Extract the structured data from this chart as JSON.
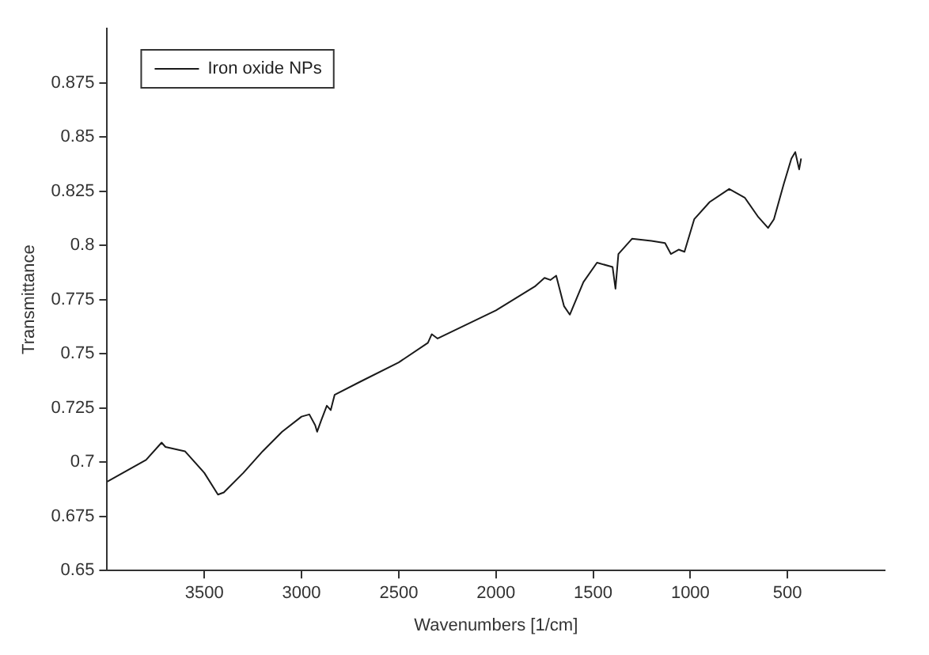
{
  "chart_data": {
    "type": "line",
    "xlabel": "Wavenumbers [1/cm]",
    "ylabel": "Transmittance",
    "legend": "top left",
    "grid": false,
    "marker": "none",
    "line_style": "solid",
    "xlim": [
      4000,
      0
    ],
    "xticks": [
      3500,
      3000,
      2500,
      2000,
      1500,
      1000,
      500
    ],
    "ylim": [
      0.65,
      0.9
    ],
    "yticks": [
      0.65,
      0.675,
      0.7,
      0.725,
      0.75,
      0.775,
      0.8,
      0.825,
      0.85,
      0.875
    ],
    "series": [
      {
        "name": "Iron oxide NPs",
        "color": "#1a1a1a",
        "x": [
          4000,
          3900,
          3800,
          3720,
          3700,
          3600,
          3500,
          3430,
          3400,
          3300,
          3200,
          3100,
          3000,
          2960,
          2930,
          2920,
          2900,
          2870,
          2850,
          2830,
          2700,
          2500,
          2350,
          2330,
          2300,
          2000,
          1800,
          1750,
          1720,
          1690,
          1650,
          1620,
          1550,
          1480,
          1400,
          1385,
          1370,
          1300,
          1200,
          1130,
          1100,
          1060,
          1030,
          980,
          900,
          800,
          720,
          650,
          600,
          570,
          520,
          480,
          460,
          440,
          430
        ],
        "values": [
          0.691,
          0.696,
          0.701,
          0.709,
          0.707,
          0.705,
          0.695,
          0.685,
          0.686,
          0.695,
          0.705,
          0.714,
          0.721,
          0.722,
          0.717,
          0.714,
          0.719,
          0.726,
          0.724,
          0.731,
          0.737,
          0.746,
          0.755,
          0.759,
          0.757,
          0.77,
          0.781,
          0.785,
          0.784,
          0.786,
          0.772,
          0.768,
          0.783,
          0.792,
          0.79,
          0.78,
          0.796,
          0.803,
          0.802,
          0.801,
          0.796,
          0.798,
          0.797,
          0.812,
          0.82,
          0.826,
          0.822,
          0.813,
          0.808,
          0.812,
          0.828,
          0.84,
          0.843,
          0.835,
          0.84
        ]
      }
    ]
  }
}
